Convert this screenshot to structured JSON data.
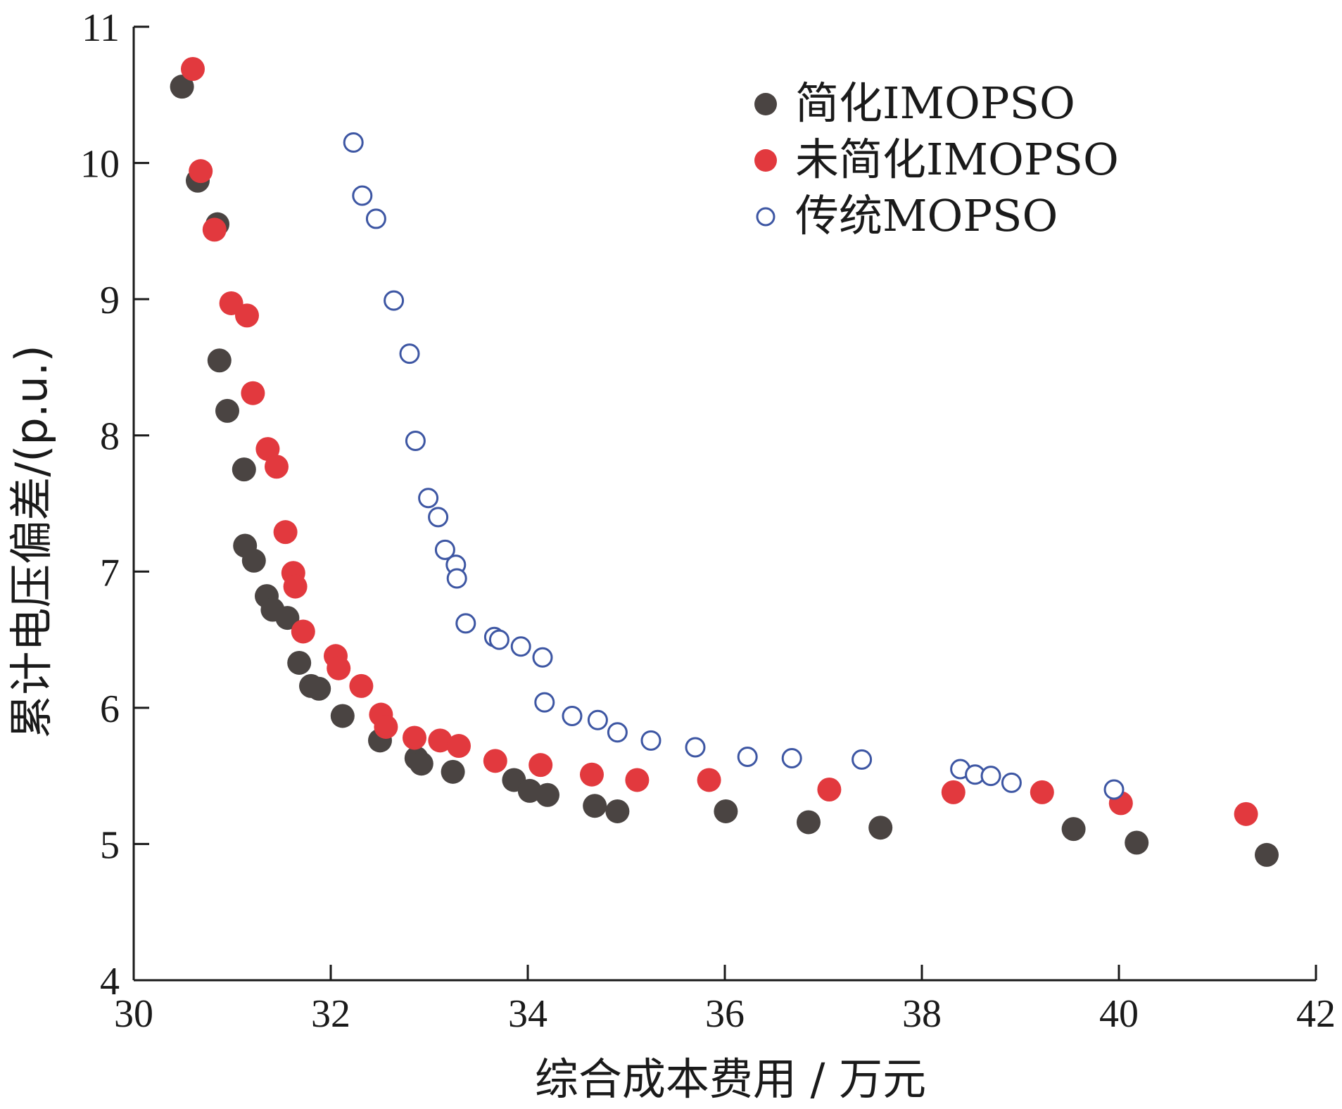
{
  "colors": {
    "simplified": "#4a4442",
    "unsimplified": "#e2393e",
    "traditional_stroke": "#3d56a3"
  },
  "chart_data": {
    "type": "scatter",
    "title": "",
    "xlabel": "综合成本费用 / 万元",
    "ylabel": "累计电压偏差/(p.u.)",
    "xlim": [
      30,
      42
    ],
    "ylim": [
      4,
      11
    ],
    "xticks": [
      "30",
      "32",
      "34",
      "36",
      "38",
      "40",
      "42"
    ],
    "yticks": [
      "4",
      "5",
      "6",
      "7",
      "8",
      "9",
      "10",
      "11"
    ],
    "grid": false,
    "legend_position": "top-right",
    "series": [
      {
        "name": "简化IMOPSO",
        "marker": "filled-circle",
        "color": "#4a4442",
        "points": [
          [
            30.49,
            10.56
          ],
          [
            30.65,
            9.87
          ],
          [
            30.85,
            9.55
          ],
          [
            30.87,
            8.55
          ],
          [
            30.95,
            8.18
          ],
          [
            31.12,
            7.75
          ],
          [
            31.13,
            7.19
          ],
          [
            31.22,
            7.08
          ],
          [
            31.35,
            6.82
          ],
          [
            31.41,
            6.72
          ],
          [
            31.56,
            6.66
          ],
          [
            31.68,
            6.33
          ],
          [
            31.8,
            6.16
          ],
          [
            31.88,
            6.14
          ],
          [
            32.12,
            5.94
          ],
          [
            32.5,
            5.76
          ],
          [
            32.87,
            5.63
          ],
          [
            32.92,
            5.59
          ],
          [
            33.24,
            5.53
          ],
          [
            33.86,
            5.47
          ],
          [
            34.02,
            5.39
          ],
          [
            34.2,
            5.36
          ],
          [
            34.68,
            5.28
          ],
          [
            34.91,
            5.24
          ],
          [
            36.01,
            5.24
          ],
          [
            36.85,
            5.16
          ],
          [
            37.58,
            5.12
          ],
          [
            39.54,
            5.11
          ],
          [
            40.18,
            5.01
          ],
          [
            41.5,
            4.92
          ]
        ]
      },
      {
        "name": "未简化IMOPSO",
        "marker": "filled-circle",
        "color": "#e2393e",
        "points": [
          [
            30.6,
            10.69
          ],
          [
            30.68,
            9.94
          ],
          [
            30.82,
            9.51
          ],
          [
            30.99,
            8.97
          ],
          [
            31.15,
            8.88
          ],
          [
            31.21,
            8.31
          ],
          [
            31.36,
            7.9
          ],
          [
            31.45,
            7.77
          ],
          [
            31.54,
            7.29
          ],
          [
            31.62,
            6.99
          ],
          [
            31.64,
            6.89
          ],
          [
            31.72,
            6.56
          ],
          [
            32.05,
            6.38
          ],
          [
            32.08,
            6.29
          ],
          [
            32.31,
            6.16
          ],
          [
            32.51,
            5.95
          ],
          [
            32.56,
            5.86
          ],
          [
            32.85,
            5.78
          ],
          [
            33.11,
            5.76
          ],
          [
            33.3,
            5.72
          ],
          [
            33.67,
            5.61
          ],
          [
            34.13,
            5.58
          ],
          [
            34.65,
            5.51
          ],
          [
            35.11,
            5.47
          ],
          [
            35.84,
            5.47
          ],
          [
            37.06,
            5.4
          ],
          [
            38.32,
            5.38
          ],
          [
            39.22,
            5.38
          ],
          [
            40.02,
            5.3
          ],
          [
            41.29,
            5.22
          ]
        ]
      },
      {
        "name": "传统MOPSO",
        "marker": "hollow-circle",
        "color": "#3d56a3",
        "points": [
          [
            32.23,
            10.15
          ],
          [
            32.32,
            9.76
          ],
          [
            32.46,
            9.59
          ],
          [
            32.64,
            8.99
          ],
          [
            32.8,
            8.6
          ],
          [
            32.86,
            7.96
          ],
          [
            32.99,
            7.54
          ],
          [
            33.09,
            7.4
          ],
          [
            33.16,
            7.16
          ],
          [
            33.27,
            7.05
          ],
          [
            33.28,
            6.95
          ],
          [
            33.37,
            6.62
          ],
          [
            33.66,
            6.52
          ],
          [
            33.71,
            6.5
          ],
          [
            33.93,
            6.45
          ],
          [
            34.15,
            6.37
          ],
          [
            34.17,
            6.04
          ],
          [
            34.45,
            5.94
          ],
          [
            34.71,
            5.91
          ],
          [
            34.91,
            5.82
          ],
          [
            35.25,
            5.76
          ],
          [
            35.7,
            5.71
          ],
          [
            36.23,
            5.64
          ],
          [
            36.68,
            5.63
          ],
          [
            37.39,
            5.62
          ],
          [
            38.39,
            5.55
          ],
          [
            38.54,
            5.51
          ],
          [
            38.7,
            5.5
          ],
          [
            38.91,
            5.45
          ],
          [
            39.95,
            5.4
          ]
        ]
      }
    ]
  }
}
